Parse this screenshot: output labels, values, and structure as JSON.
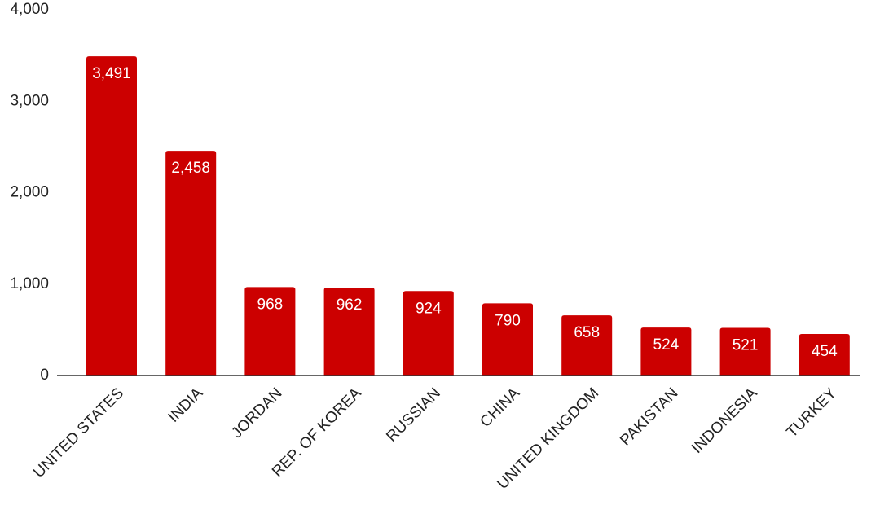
{
  "chart_data": {
    "type": "bar",
    "categories": [
      "UNITED STATES",
      "INDIA",
      "JORDAN",
      "REP. OF KOREA",
      "RUSSIAN",
      "CHINA",
      "UNITED KINGDOM",
      "PAKISTAN",
      "INDONESIA",
      "TURKEY"
    ],
    "values": [
      3491,
      2458,
      968,
      962,
      924,
      790,
      658,
      524,
      521,
      454
    ],
    "value_labels": [
      "3,491",
      "2,458",
      "968",
      "962",
      "924",
      "790",
      "658",
      "524",
      "521",
      "454"
    ],
    "color": "#cc0000",
    "ylim": [
      0,
      4000
    ],
    "yticks": [
      0,
      {
        "value": 1000,
        "label": "1,000"
      },
      {
        "value": 2000,
        "label": "2,000"
      },
      {
        "value": 3000,
        "label": "3,000"
      },
      {
        "value": 4000,
        "label": "4,000"
      }
    ],
    "grid": false
  }
}
